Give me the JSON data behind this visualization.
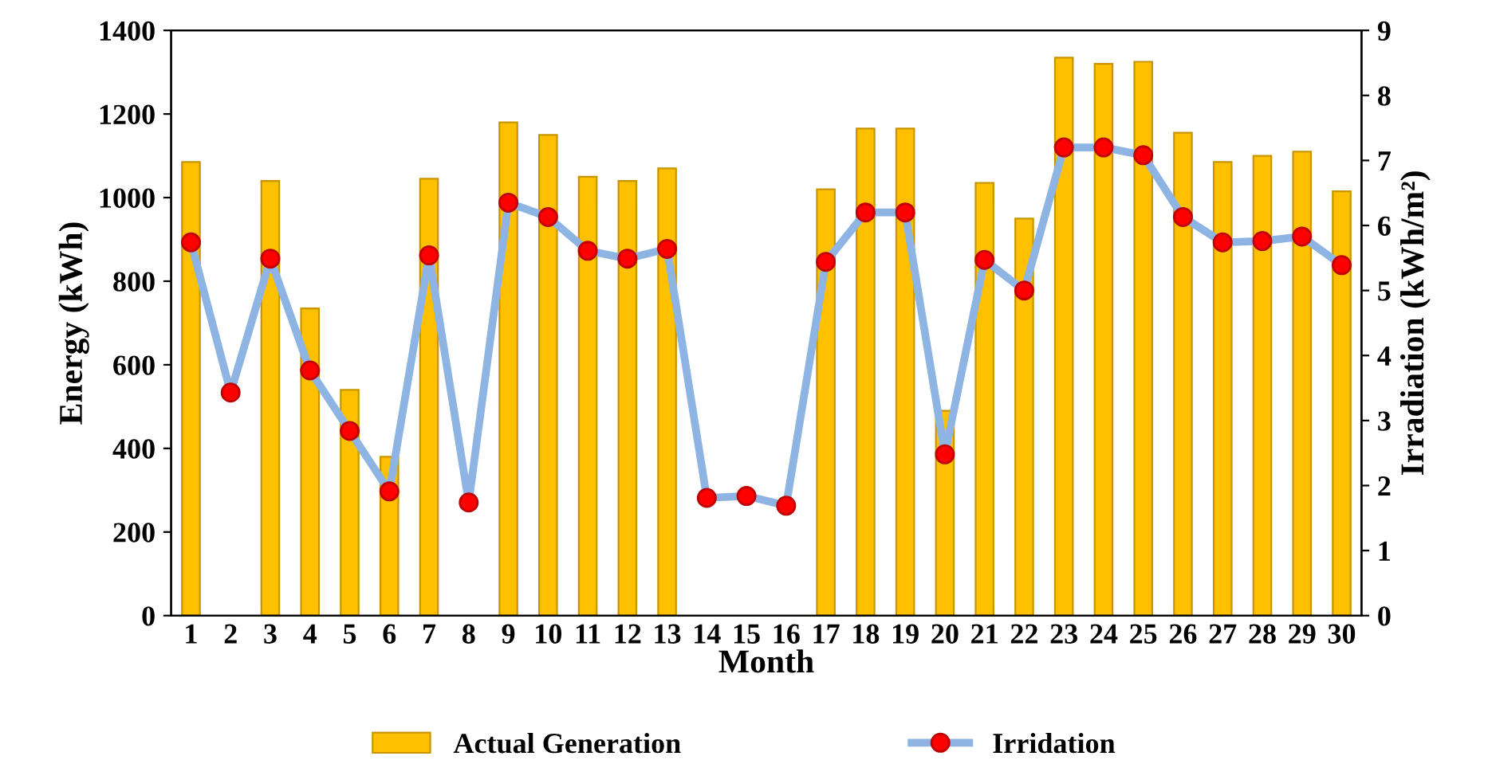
{
  "chart_data": {
    "type": "bar",
    "xlabel": "Month",
    "ylabel": "Energy (kWh)",
    "y2label": "Irradiation (kWh/m²)",
    "categories": [
      "1",
      "2",
      "3",
      "4",
      "5",
      "6",
      "7",
      "8",
      "9",
      "10",
      "11",
      "12",
      "13",
      "14",
      "15",
      "16",
      "17",
      "18",
      "19",
      "20",
      "21",
      "22",
      "23",
      "24",
      "25",
      "26",
      "27",
      "28",
      "29",
      "30"
    ],
    "series": [
      {
        "name": "Actual Generation",
        "color": "#ffc000",
        "values": [
          1085,
          null,
          1040,
          735,
          540,
          380,
          1045,
          null,
          1180,
          1150,
          1050,
          1040,
          1070,
          null,
          null,
          null,
          1020,
          1165,
          1165,
          490,
          1035,
          950,
          1335,
          1320,
          1325,
          1155,
          1085,
          1100,
          1110,
          1015
        ]
      },
      {
        "name": "Irridation",
        "type": "line",
        "axis": "y2",
        "color": "#8eb4e3",
        "values": [
          5.74,
          3.43,
          5.49,
          3.77,
          2.84,
          1.91,
          5.54,
          1.74,
          6.35,
          6.13,
          5.61,
          5.49,
          5.64,
          1.81,
          1.84,
          1.69,
          5.44,
          6.2,
          6.2,
          2.48,
          5.47,
          5.0,
          7.2,
          7.2,
          7.08,
          6.13,
          5.74,
          5.76,
          5.83,
          5.39
        ]
      }
    ],
    "ylim": [
      0,
      1400
    ],
    "yticks": [
      0,
      200,
      400,
      600,
      800,
      1000,
      1200,
      1400
    ],
    "y2lim": [
      0,
      9
    ],
    "y2ticks": [
      0,
      1,
      2,
      3,
      4,
      5,
      6,
      7,
      8,
      9
    ],
    "grid": false,
    "legend": "bottom",
    "marker": "circle",
    "line_style": "solid"
  }
}
